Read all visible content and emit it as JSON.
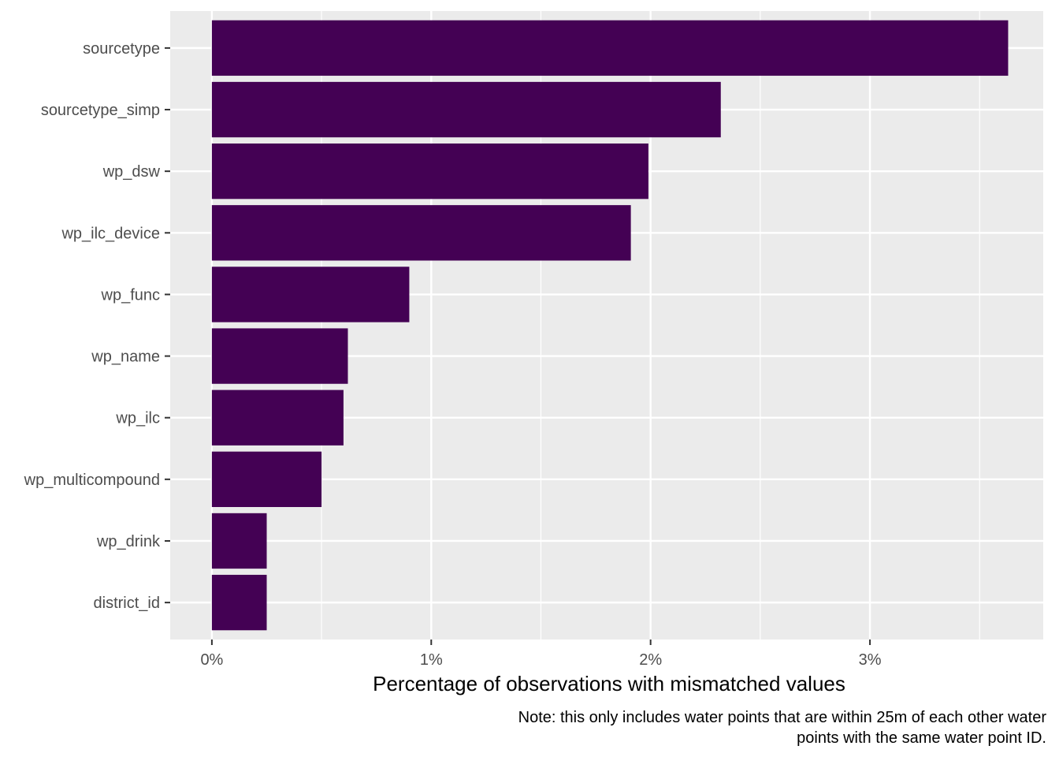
{
  "chart_data": {
    "type": "bar",
    "orientation": "horizontal",
    "categories": [
      "sourcetype",
      "sourcetype_simp",
      "wp_dsw",
      "wp_ilc_device",
      "wp_func",
      "wp_name",
      "wp_ilc",
      "wp_multicompound",
      "wp_drink",
      "district_id"
    ],
    "values": [
      3.63,
      2.32,
      1.99,
      1.91,
      0.9,
      0.62,
      0.6,
      0.5,
      0.25,
      0.25
    ],
    "value_unit": "%",
    "xlabel": "Percentage of observations with mismatched values",
    "ylabel": "",
    "xlim": [
      -0.19,
      3.79
    ],
    "x_ticks": [
      0,
      1,
      2,
      3
    ],
    "x_tick_labels": [
      "0%",
      "1%",
      "2%",
      "3%"
    ],
    "caption_lines": [
      "Note: this only includes water points that are within 25m of each other water",
      "points with the same water point ID."
    ],
    "grid": true,
    "legend": "none",
    "colors": {
      "bar": "#440154",
      "panel": "#ebebeb",
      "gridline": "#ffffff",
      "tick_text": "#4d4d4d",
      "tick_mark": "#333333"
    }
  }
}
